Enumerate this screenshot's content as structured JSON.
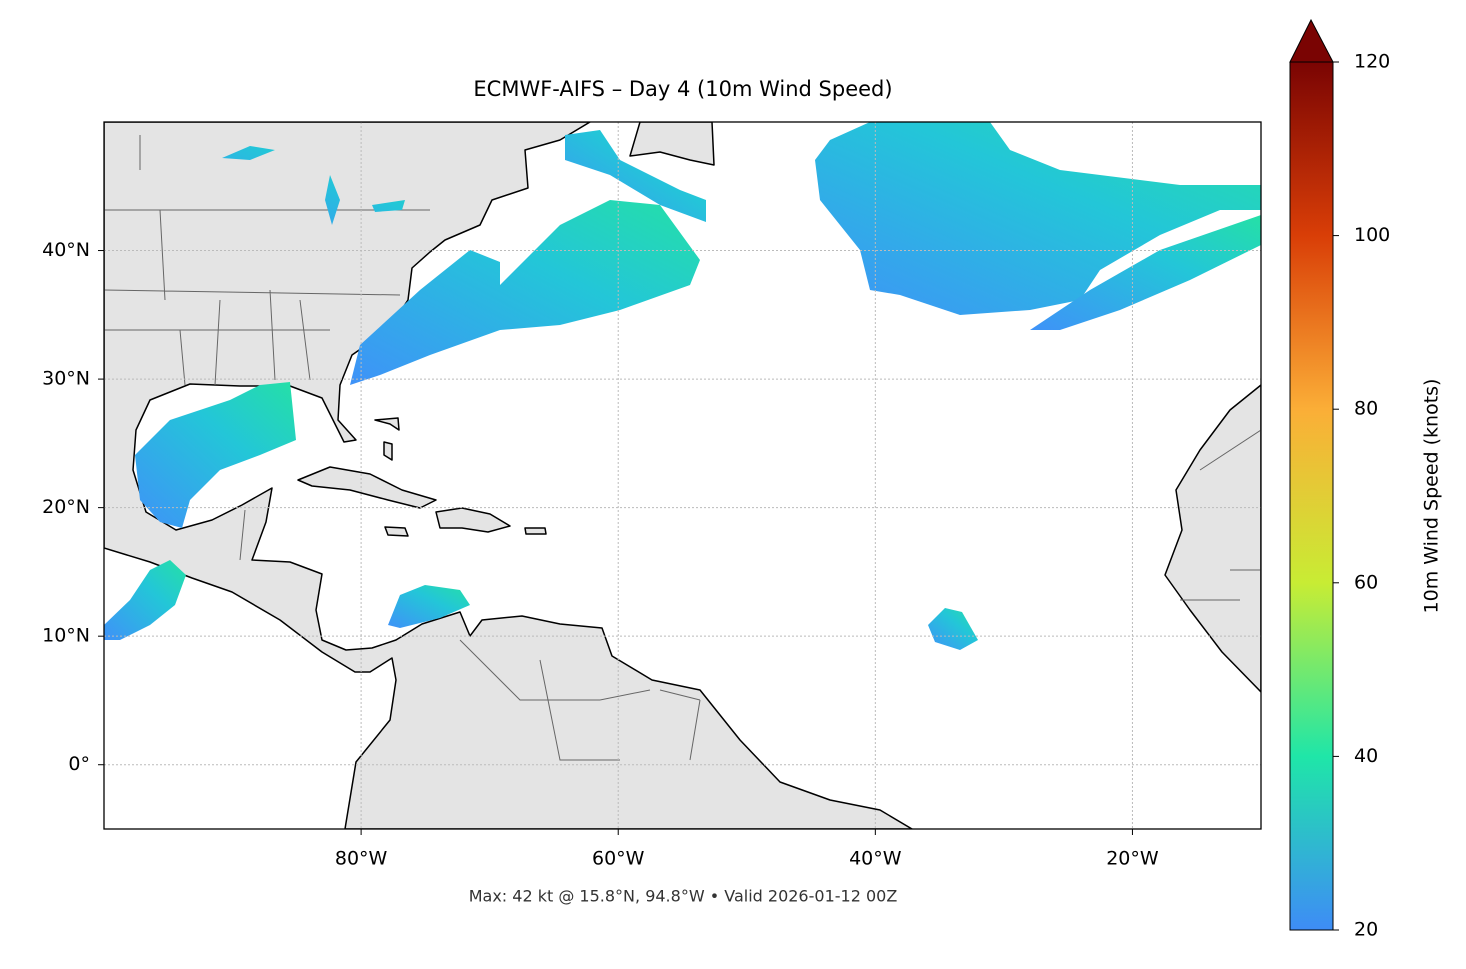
{
  "title": "ECMWF-AIFS – Day 4 (10m Wind Speed)",
  "footnote": "Max: 42 kt @ 15.8°N, 94.8°W • Valid 2026-01-12 00Z",
  "map": {
    "xlim": [
      -100,
      -10
    ],
    "ylim": [
      -5,
      50
    ],
    "xticks": [
      {
        "value": -80,
        "label": "80°W"
      },
      {
        "value": -60,
        "label": "60°W"
      },
      {
        "value": -40,
        "label": "40°W"
      },
      {
        "value": -20,
        "label": "20°W"
      }
    ],
    "yticks": [
      {
        "value": 0,
        "label": "0°"
      },
      {
        "value": 10,
        "label": "10°N"
      },
      {
        "value": 20,
        "label": "20°N"
      },
      {
        "value": 30,
        "label": "30°N"
      },
      {
        "value": 40,
        "label": "40°N"
      }
    ],
    "grid": true
  },
  "colorbar": {
    "label": "10m Wind Speed (knots)",
    "lim": [
      20,
      120
    ],
    "ticks": [
      20,
      40,
      60,
      80,
      100,
      120
    ],
    "colors": [
      "#3e8cf6",
      "#1fe6a8",
      "#c8ec34",
      "#fbae37",
      "#d93e07",
      "#7a0403"
    ]
  }
}
